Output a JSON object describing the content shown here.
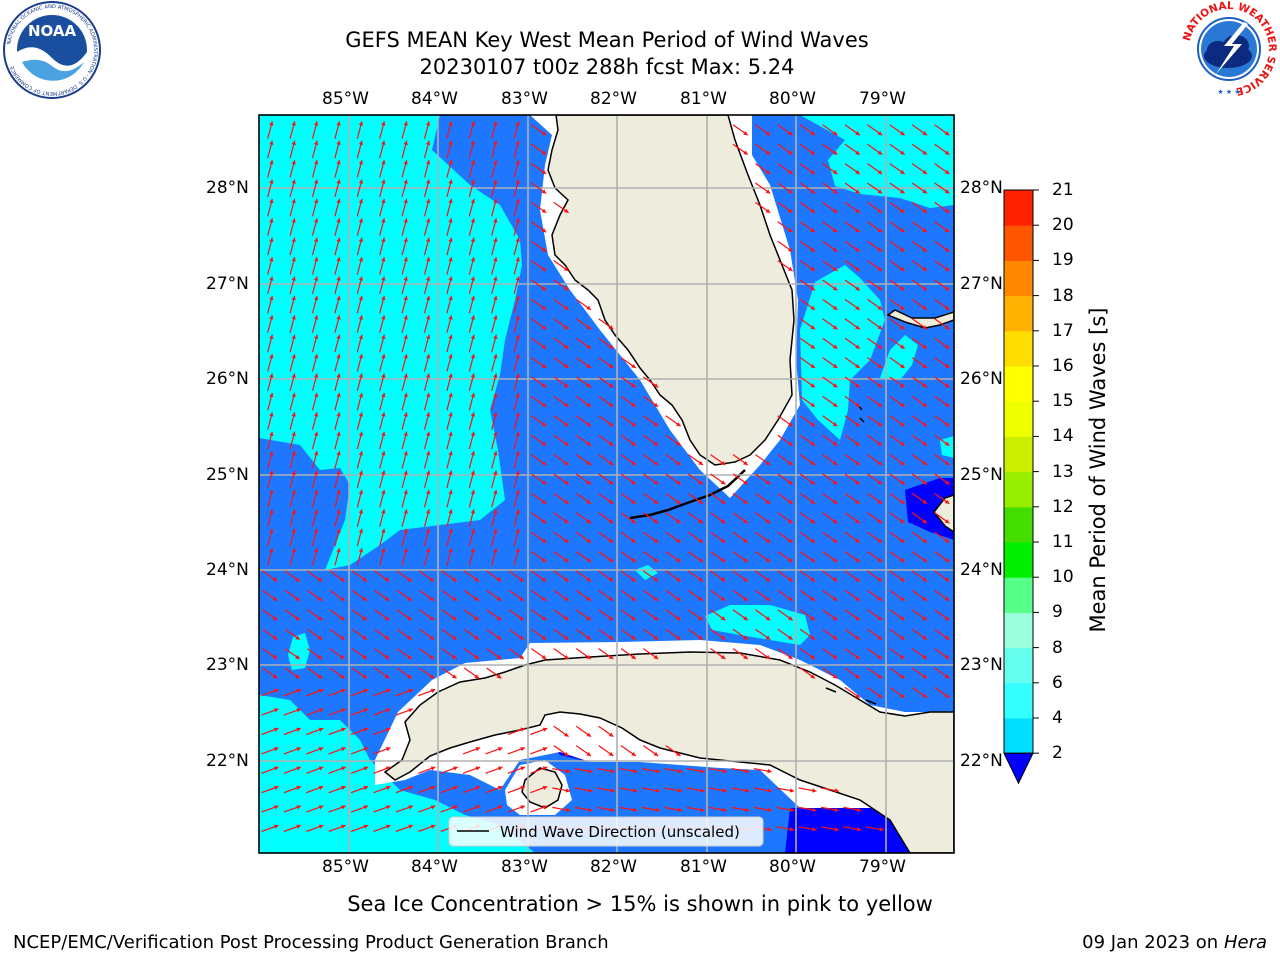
{
  "title": {
    "line1": "GEFS MEAN Key West Mean Period of Wind Waves",
    "line2": "20230107 t00z 288h fcst   Max: 5.24"
  },
  "logos": {
    "noaa_text": "NOAA",
    "noaa_ring": "NATIONAL OCEANIC AND ATMOSPHERIC ADMINISTRATION · U.S. DEPARTMENT OF COMMERCE",
    "nws_ring": "NATIONAL WEATHER SERVICE"
  },
  "map": {
    "lon_ticks": [
      "85°W",
      "84°W",
      "83°W",
      "82°W",
      "81°W",
      "80°W",
      "79°W"
    ],
    "lat_ticks": [
      "28°N",
      "27°N",
      "26°N",
      "25°N",
      "24°N",
      "23°N",
      "22°N"
    ],
    "legend_label": "Wind Wave Direction (unscaled)"
  },
  "colorbar": {
    "label": "Mean Period of Wind Waves [s]",
    "levels": [
      "2",
      "4",
      "6",
      "8",
      "9",
      "10",
      "11",
      "12",
      "13",
      "14",
      "15",
      "16",
      "17",
      "18",
      "19",
      "20",
      "21"
    ],
    "colors": [
      "#1e6fff",
      "#00ddff",
      "#33ffff",
      "#66ffee",
      "#99ffdd",
      "#55ff88",
      "#00ee00",
      "#44dd00",
      "#99ee00",
      "#ccee00",
      "#eeff00",
      "#ffff00",
      "#ffdd00",
      "#ffb000",
      "#ff8800",
      "#ff5500",
      "#ff2200",
      "#ff0000"
    ],
    "under_color": "#0000ff",
    "land_color": "#eeecdc",
    "ocean_colors": {
      "period_2_4": "#1e78ff",
      "period_4_6": "#00ffff",
      "below_2": "#0000ff"
    }
  },
  "note": "Sea Ice Concentration > 15% is shown in pink to yellow",
  "footer": {
    "left": "NCEP/EMC/Verification Post Processing Product Generation Branch",
    "date": "09 Jan 2023 on ",
    "host": "Hera"
  }
}
